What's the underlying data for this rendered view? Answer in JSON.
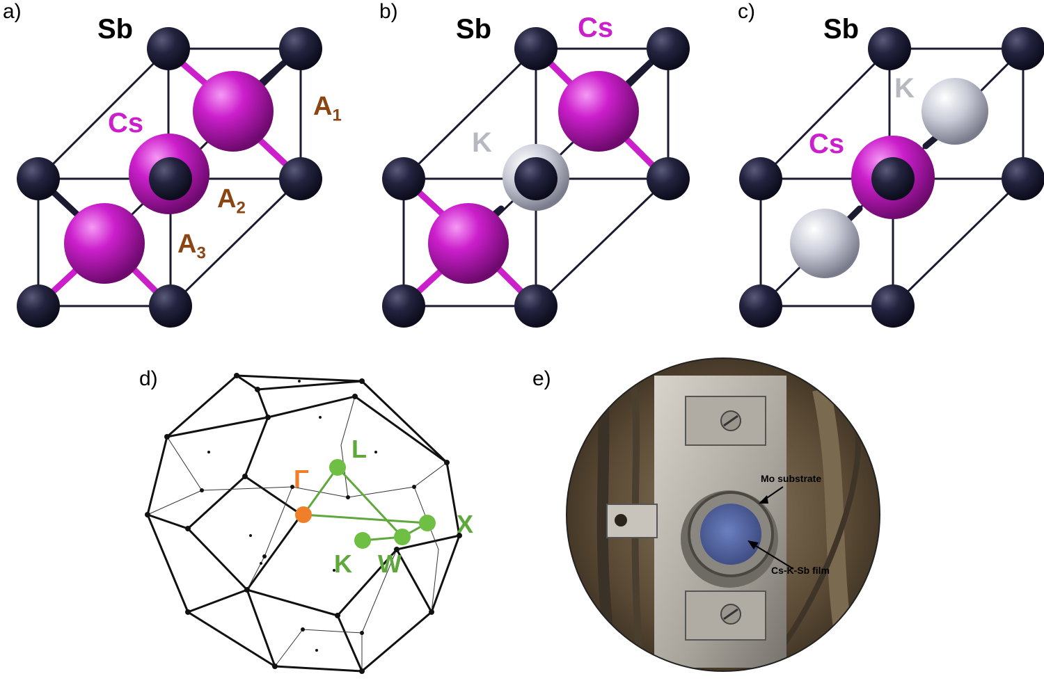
{
  "panels": {
    "a": {
      "label": "a)",
      "sb": "Sb",
      "cs": "Cs",
      "site1": "A",
      "site1_sub": "1",
      "site2": "A",
      "site2_sub": "2",
      "site3": "A",
      "site3_sub": "3"
    },
    "b": {
      "label": "b)",
      "sb": "Sb",
      "cs": "Cs",
      "k": "K"
    },
    "c": {
      "label": "c)",
      "sb": "Sb",
      "cs": "Cs",
      "k": "K"
    },
    "d": {
      "label": "d)",
      "gamma": "Γ",
      "L": "L",
      "X": "X",
      "K": "K",
      "W": "W"
    },
    "e": {
      "label": "e)",
      "substrate": "Mo substrate",
      "film": "Cs-K-Sb film"
    }
  },
  "colors": {
    "sb": "#1c1c35",
    "cs": "#cc1fcc",
    "k": "#c8cad6",
    "site_label": "#8b4513",
    "path": "#5fa83c",
    "gamma": "#f07f2a"
  }
}
